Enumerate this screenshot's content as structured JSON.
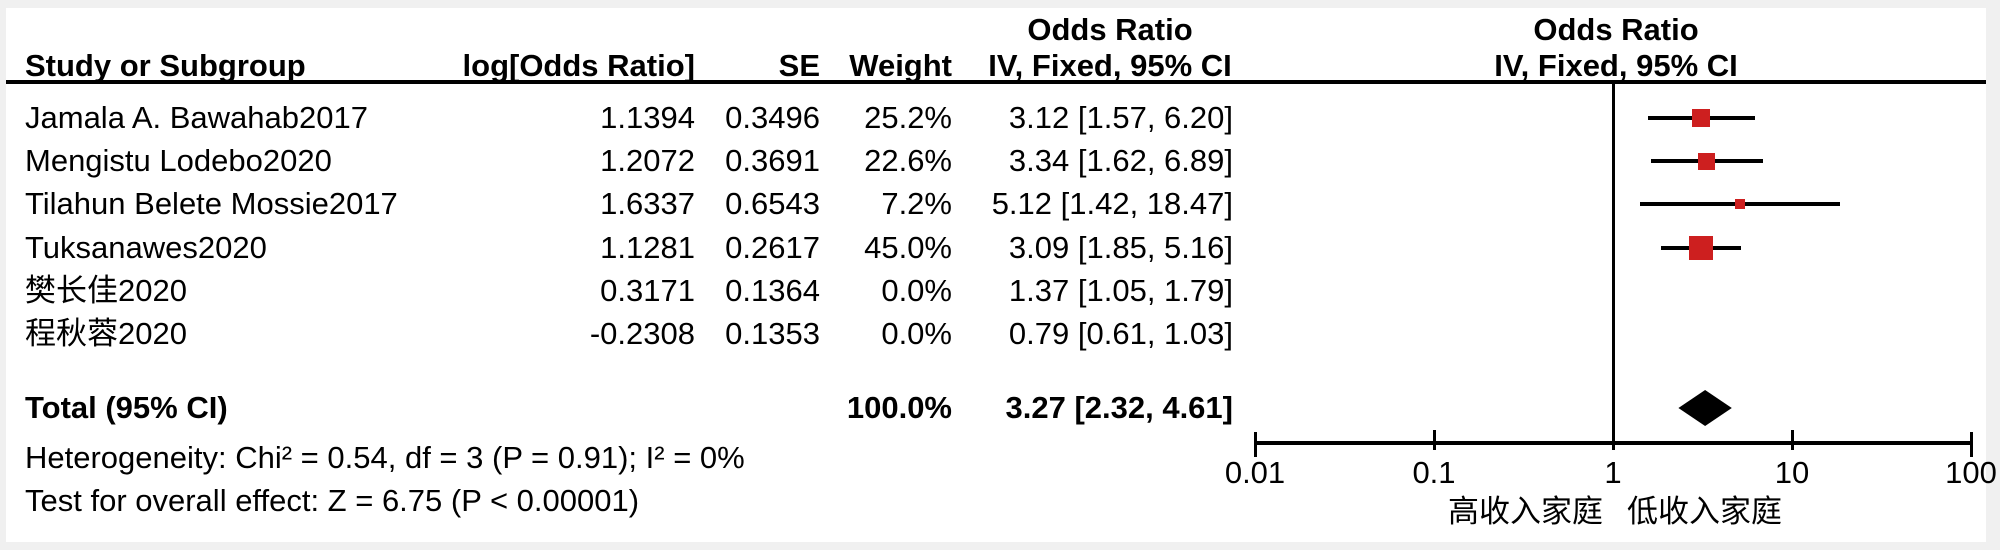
{
  "colors": {
    "marker_red": "#CD1F1F",
    "diamond_black": "#000000",
    "line_black": "#000000",
    "page_bg": "#f0f0f0",
    "canvas_bg": "#ffffff"
  },
  "table_headers": {
    "study": "Study or Subgroup",
    "log_or": "log[Odds Ratio]",
    "se": "SE",
    "weight": "Weight",
    "or_title": "Odds Ratio",
    "or_sub": "IV, Fixed, 95% CI"
  },
  "plot_headers": {
    "or_title": "Odds Ratio",
    "or_sub": "IV, Fixed, 95% CI"
  },
  "chart_data": {
    "type": "forest",
    "x_scale": "log10",
    "x_ticks": [
      0.01,
      0.1,
      1,
      10,
      100
    ],
    "x_tick_labels": [
      "0.01",
      "0.1",
      "1",
      "10",
      "100"
    ],
    "favours_left": "高收入家庭",
    "favours_right": "低收入家庭",
    "studies": [
      {
        "name": "Jamala A. Bawahab2017",
        "log_or": "1.1394",
        "se": "0.3496",
        "weight": "25.2%",
        "or": 3.12,
        "ci_low": 1.57,
        "ci_high": 6.2,
        "ci_text": "3.12 [1.57, 6.20]"
      },
      {
        "name": "Mengistu Lodebo2020",
        "log_or": "1.2072",
        "se": "0.3691",
        "weight": "22.6%",
        "or": 3.34,
        "ci_low": 1.62,
        "ci_high": 6.89,
        "ci_text": "3.34 [1.62, 6.89]"
      },
      {
        "name": "Tilahun Belete Mossie2017",
        "log_or": "1.6337",
        "se": "0.6543",
        "weight": "7.2%",
        "or": 5.12,
        "ci_low": 1.42,
        "ci_high": 18.47,
        "ci_text": "5.12 [1.42, 18.47]"
      },
      {
        "name": "Tuksanawes2020",
        "log_or": "1.1281",
        "se": "0.2617",
        "weight": "45.0%",
        "or": 3.09,
        "ci_low": 1.85,
        "ci_high": 5.16,
        "ci_text": "3.09 [1.85, 5.16]"
      },
      {
        "name": "樊长佳2020",
        "log_or": "0.3171",
        "se": "0.1364",
        "weight": "0.0%",
        "or": 1.37,
        "ci_low": 1.05,
        "ci_high": 1.79,
        "ci_text": "1.37 [1.05, 1.79]"
      },
      {
        "name": "程秋蓉2020",
        "log_or": "-0.2308",
        "se": "0.1353",
        "weight": "0.0%",
        "or": 0.79,
        "ci_low": 0.61,
        "ci_high": 1.03,
        "ci_text": "0.79 [0.61, 1.03]"
      }
    ],
    "total": {
      "label": "Total (95% CI)",
      "weight": "100.0%",
      "or": 3.27,
      "ci_low": 2.32,
      "ci_high": 4.61,
      "ci_text": "3.27 [2.32, 4.61]"
    },
    "heterogeneity": "Heterogeneity: Chi² = 0.54, df = 3 (P = 0.91); I² = 0%",
    "overall_effect": "Test for overall effect: Z = 6.75 (P < 0.00001)"
  }
}
